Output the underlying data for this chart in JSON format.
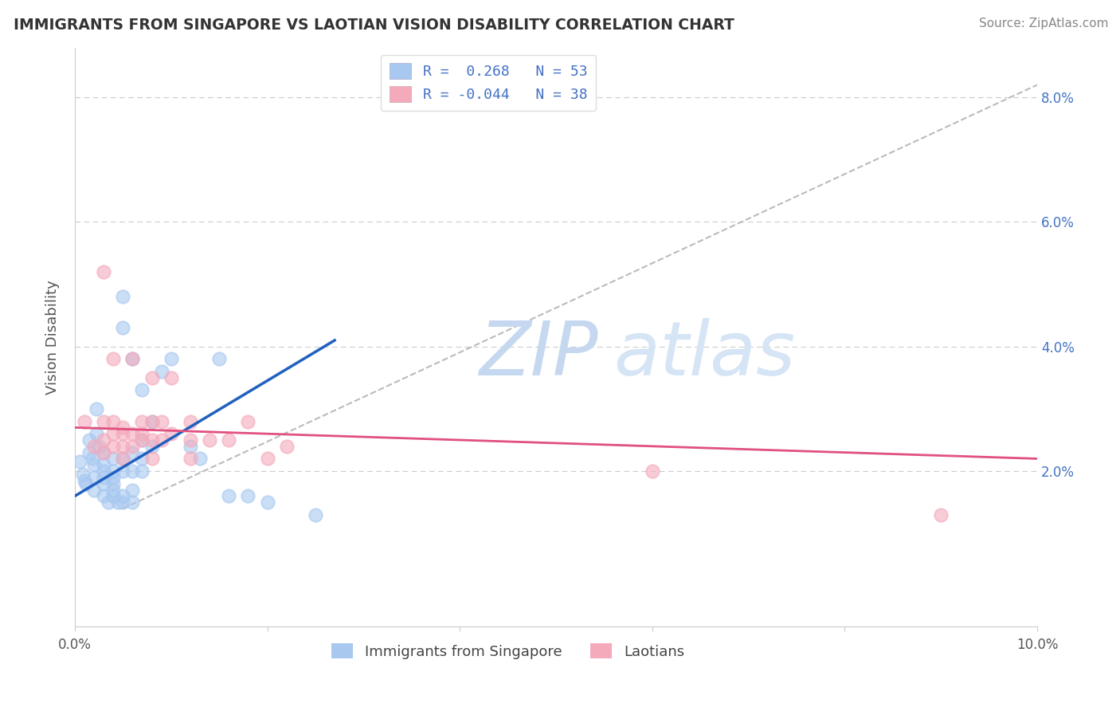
{
  "title": "IMMIGRANTS FROM SINGAPORE VS LAOTIAN VISION DISABILITY CORRELATION CHART",
  "source": "Source: ZipAtlas.com",
  "ylabel": "Vision Disability",
  "xlim": [
    0.0,
    0.1
  ],
  "ylim": [
    -0.005,
    0.088
  ],
  "ytick_labels_right": [
    "2.0%",
    "4.0%",
    "6.0%",
    "8.0%"
  ],
  "ytick_vals_right": [
    0.02,
    0.04,
    0.06,
    0.08
  ],
  "color_blue": "#A8C8F0",
  "color_pink": "#F4AABB",
  "line_blue": "#2060C0",
  "line_pink": "#E05080",
  "line_gray": "#BBBBBB",
  "background_color": "#FFFFFF",
  "grid_color": "#CCCCCC",
  "sg_points": [
    [
      0.0005,
      0.0215
    ],
    [
      0.0008,
      0.0195
    ],
    [
      0.001,
      0.0185
    ],
    [
      0.0012,
      0.018
    ],
    [
      0.0015,
      0.025
    ],
    [
      0.0015,
      0.023
    ],
    [
      0.0018,
      0.022
    ],
    [
      0.002,
      0.021
    ],
    [
      0.002,
      0.019
    ],
    [
      0.002,
      0.017
    ],
    [
      0.0022,
      0.03
    ],
    [
      0.0022,
      0.026
    ],
    [
      0.0025,
      0.024
    ],
    [
      0.003,
      0.023
    ],
    [
      0.003,
      0.021
    ],
    [
      0.003,
      0.02
    ],
    [
      0.003,
      0.019
    ],
    [
      0.003,
      0.018
    ],
    [
      0.003,
      0.016
    ],
    [
      0.0035,
      0.015
    ],
    [
      0.004,
      0.022
    ],
    [
      0.004,
      0.02
    ],
    [
      0.004,
      0.019
    ],
    [
      0.004,
      0.018
    ],
    [
      0.004,
      0.017
    ],
    [
      0.004,
      0.016
    ],
    [
      0.0045,
      0.015
    ],
    [
      0.005,
      0.048
    ],
    [
      0.005,
      0.043
    ],
    [
      0.005,
      0.022
    ],
    [
      0.005,
      0.02
    ],
    [
      0.005,
      0.016
    ],
    [
      0.005,
      0.015
    ],
    [
      0.006,
      0.038
    ],
    [
      0.006,
      0.023
    ],
    [
      0.006,
      0.02
    ],
    [
      0.006,
      0.017
    ],
    [
      0.006,
      0.015
    ],
    [
      0.007,
      0.033
    ],
    [
      0.007,
      0.025
    ],
    [
      0.007,
      0.022
    ],
    [
      0.007,
      0.02
    ],
    [
      0.008,
      0.028
    ],
    [
      0.008,
      0.024
    ],
    [
      0.009,
      0.036
    ],
    [
      0.01,
      0.038
    ],
    [
      0.012,
      0.024
    ],
    [
      0.013,
      0.022
    ],
    [
      0.015,
      0.038
    ],
    [
      0.016,
      0.016
    ],
    [
      0.018,
      0.016
    ],
    [
      0.02,
      0.015
    ],
    [
      0.025,
      0.013
    ]
  ],
  "la_points": [
    [
      0.001,
      0.028
    ],
    [
      0.002,
      0.024
    ],
    [
      0.003,
      0.052
    ],
    [
      0.003,
      0.028
    ],
    [
      0.003,
      0.025
    ],
    [
      0.003,
      0.023
    ],
    [
      0.004,
      0.038
    ],
    [
      0.004,
      0.028
    ],
    [
      0.004,
      0.026
    ],
    [
      0.004,
      0.024
    ],
    [
      0.005,
      0.027
    ],
    [
      0.005,
      0.026
    ],
    [
      0.005,
      0.024
    ],
    [
      0.005,
      0.022
    ],
    [
      0.006,
      0.038
    ],
    [
      0.006,
      0.026
    ],
    [
      0.006,
      0.024
    ],
    [
      0.007,
      0.028
    ],
    [
      0.007,
      0.026
    ],
    [
      0.007,
      0.025
    ],
    [
      0.008,
      0.035
    ],
    [
      0.008,
      0.028
    ],
    [
      0.008,
      0.025
    ],
    [
      0.008,
      0.022
    ],
    [
      0.009,
      0.028
    ],
    [
      0.009,
      0.025
    ],
    [
      0.01,
      0.035
    ],
    [
      0.01,
      0.026
    ],
    [
      0.012,
      0.028
    ],
    [
      0.012,
      0.025
    ],
    [
      0.012,
      0.022
    ],
    [
      0.014,
      0.025
    ],
    [
      0.016,
      0.025
    ],
    [
      0.018,
      0.028
    ],
    [
      0.02,
      0.022
    ],
    [
      0.022,
      0.024
    ],
    [
      0.06,
      0.02
    ],
    [
      0.09,
      0.013
    ]
  ],
  "sg_line_x": [
    0.0,
    0.027
  ],
  "sg_line_y": [
    0.016,
    0.041
  ],
  "la_line_x": [
    0.0,
    0.1
  ],
  "la_line_y": [
    0.027,
    0.022
  ],
  "gray_line_x": [
    0.005,
    0.1
  ],
  "gray_line_y": [
    0.014,
    0.082
  ]
}
